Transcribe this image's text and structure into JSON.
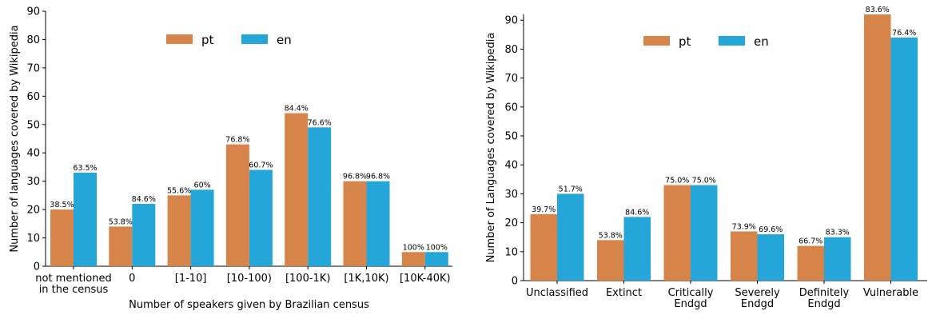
{
  "colors": {
    "pt": "#d6844a",
    "en": "#24a6d8"
  },
  "chart_data": [
    {
      "type": "bar",
      "xlabel": "Number of speakers given by Brazilian census",
      "ylabel": "Number of languages covered by Wikipedia",
      "ylim": [
        0,
        90
      ],
      "yticks": [
        0,
        10,
        20,
        30,
        40,
        50,
        60,
        70,
        80,
        90
      ],
      "grid": false,
      "legend": "top-center",
      "categories": [
        [
          "not mentioned",
          "in the census"
        ],
        [
          "0"
        ],
        [
          "[1-10]"
        ],
        [
          "[10-100)"
        ],
        [
          "[100-1K)"
        ],
        [
          "[1K,10K)"
        ],
        [
          "[10K-40K)"
        ]
      ],
      "series": [
        {
          "name": "pt",
          "values": [
            20,
            14,
            25,
            43,
            54,
            30,
            5
          ],
          "labels": [
            "38.5%",
            "53.8%",
            "55.6%",
            "76.8%",
            "84.4%",
            "96.8%",
            "100%"
          ]
        },
        {
          "name": "en",
          "values": [
            33,
            22,
            27,
            34,
            49,
            30,
            5
          ],
          "labels": [
            "63.5%",
            "84.6%",
            "60%",
            "60.7%",
            "76.6%",
            "96.8%",
            "100%"
          ]
        }
      ]
    },
    {
      "type": "bar",
      "xlabel": "",
      "ylabel": "Number of Languages covered by Wikipedia",
      "ylim": [
        0,
        92
      ],
      "yticks": [
        0,
        10,
        20,
        30,
        40,
        50,
        60,
        70,
        80,
        90
      ],
      "grid": false,
      "legend": "top-center",
      "categories": [
        [
          "Unclassified"
        ],
        [
          "Extinct"
        ],
        [
          "Critically",
          "Endgd"
        ],
        [
          "Severely",
          "Endgd"
        ],
        [
          "Definitely",
          "Endgd"
        ],
        [
          "Vulnerable"
        ]
      ],
      "series": [
        {
          "name": "pt",
          "values": [
            23,
            14,
            33,
            17,
            12,
            92
          ],
          "labels": [
            "39.7%",
            "53.8%",
            "75.0%",
            "73.9%",
            "66.7%",
            "83.6%"
          ]
        },
        {
          "name": "en",
          "values": [
            30,
            22,
            33,
            16,
            15,
            84
          ],
          "labels": [
            "51.7%",
            "84.6%",
            "75.0%",
            "69.6%",
            "83.3%",
            "76.4%"
          ]
        }
      ]
    }
  ]
}
